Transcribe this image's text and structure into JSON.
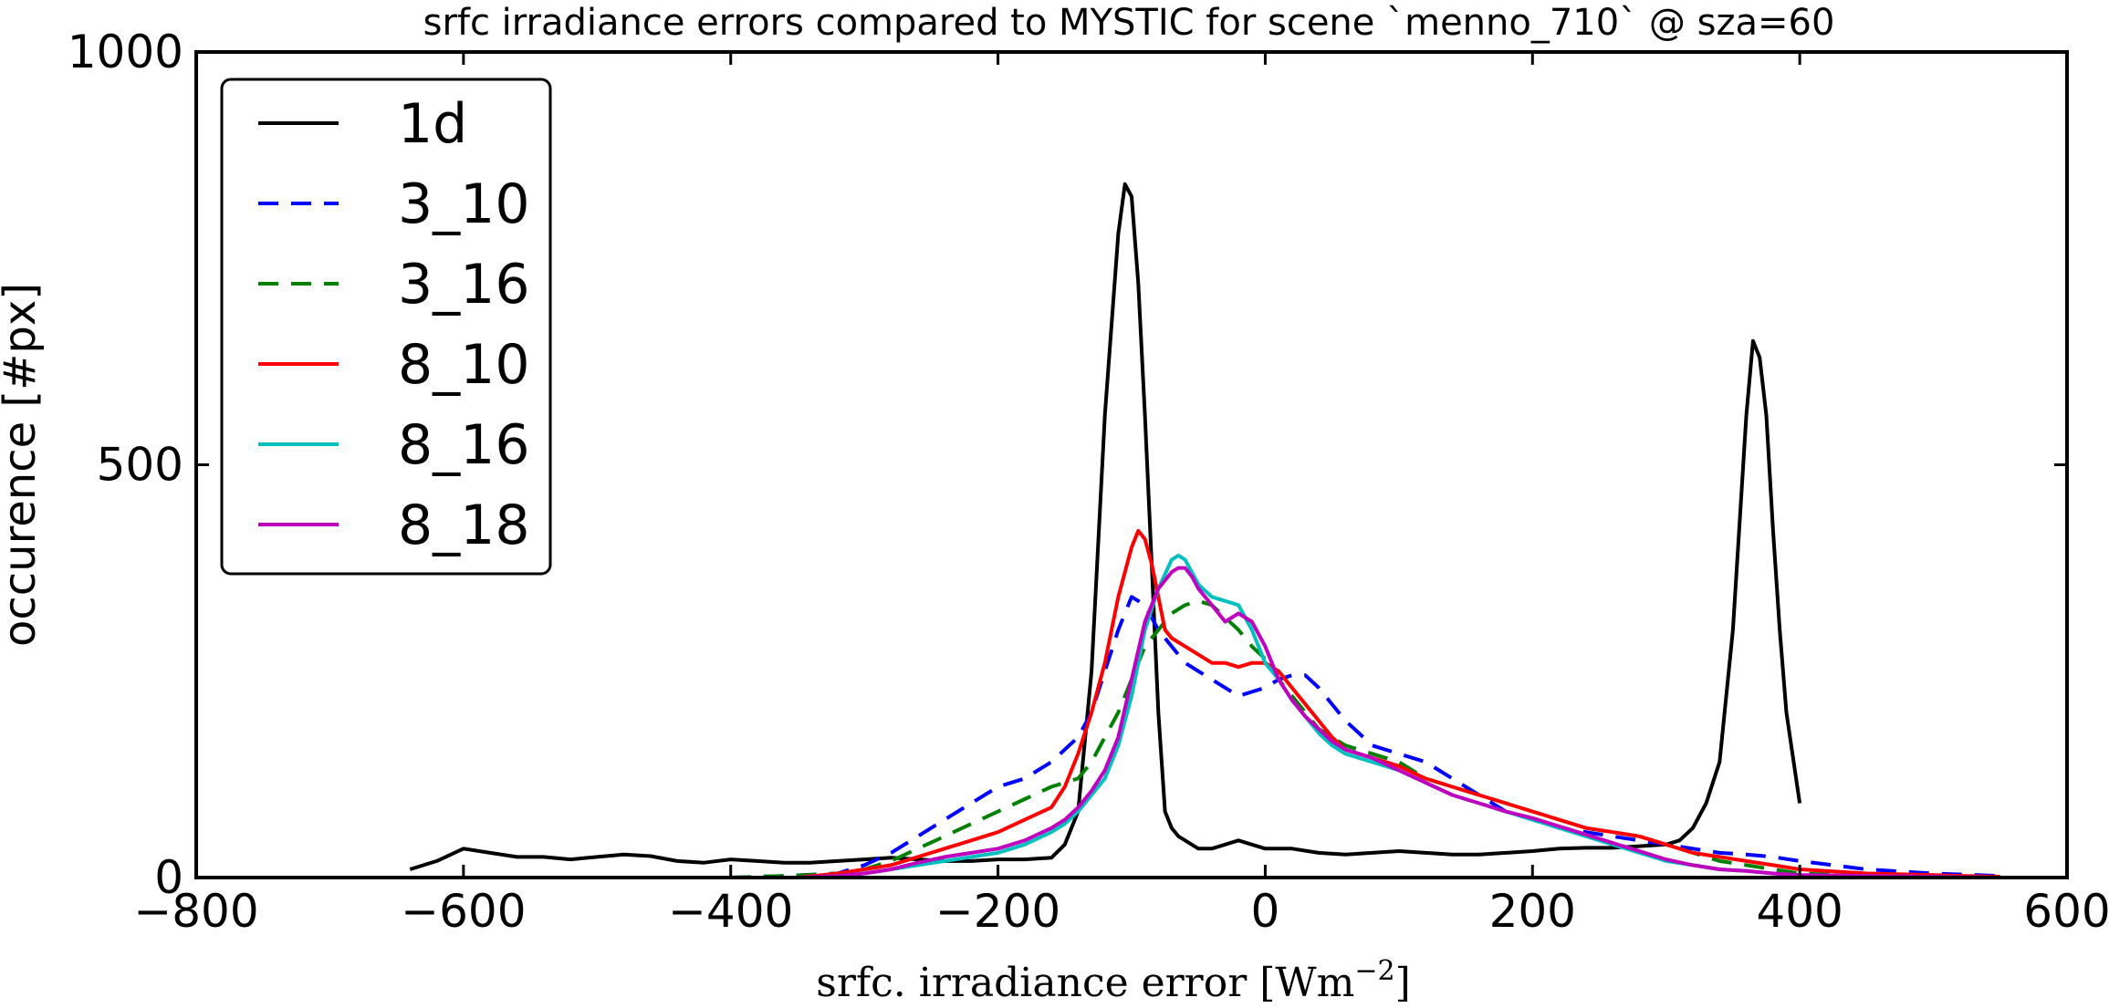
{
  "chart_data": {
    "type": "line",
    "title": "srfc irradiance errors compared to MYSTIC for scene `menno_710` @ sza=60",
    "xlabel": "srfc. irradiance error [Wm",
    "xlabel_sup": "−2",
    "xlabel_end": "]",
    "ylabel": "occurence [#px]",
    "xlim": [
      -800,
      600
    ],
    "ylim": [
      0,
      1000
    ],
    "xticks": [
      -800,
      -600,
      -400,
      -200,
      0,
      200,
      400,
      600
    ],
    "xtick_labels": [
      "−800",
      "−600",
      "−400",
      "−200",
      "0",
      "200",
      "400",
      "600"
    ],
    "yticks": [
      0,
      500,
      1000
    ],
    "ytick_labels": [
      "0",
      "500",
      "1000"
    ],
    "grid": false,
    "legend": "top-left",
    "series": [
      {
        "name": "1d",
        "color": "#000000",
        "style": "solid",
        "x": [
          -640,
          -620,
          -600,
          -580,
          -560,
          -540,
          -520,
          -500,
          -480,
          -460,
          -440,
          -420,
          -400,
          -380,
          -360,
          -340,
          -320,
          -300,
          -280,
          -260,
          -240,
          -220,
          -200,
          -180,
          -160,
          -150,
          -140,
          -130,
          -120,
          -110,
          -105,
          -100,
          -95,
          -90,
          -85,
          -80,
          -75,
          -70,
          -65,
          -60,
          -55,
          -50,
          -40,
          -30,
          -20,
          -10,
          0,
          10,
          20,
          40,
          60,
          80,
          100,
          120,
          140,
          160,
          180,
          200,
          220,
          240,
          260,
          280,
          300,
          310,
          320,
          330,
          340,
          350,
          360,
          365,
          370,
          375,
          380,
          385,
          390,
          400
        ],
        "y": [
          10,
          20,
          35,
          30,
          25,
          25,
          22,
          25,
          28,
          26,
          20,
          18,
          22,
          20,
          18,
          18,
          20,
          22,
          24,
          22,
          20,
          20,
          22,
          22,
          24,
          40,
          80,
          250,
          560,
          780,
          840,
          825,
          720,
          560,
          380,
          200,
          80,
          60,
          50,
          45,
          40,
          35,
          35,
          40,
          45,
          40,
          35,
          35,
          35,
          30,
          28,
          30,
          32,
          30,
          28,
          28,
          30,
          32,
          35,
          36,
          36,
          38,
          40,
          45,
          60,
          90,
          140,
          300,
          560,
          650,
          630,
          560,
          420,
          300,
          200,
          90
        ]
      },
      {
        "name": "3_10",
        "color": "#0000ff",
        "style": "dashed",
        "x": [
          -400,
          -360,
          -320,
          -300,
          -280,
          -260,
          -240,
          -220,
          -200,
          -180,
          -160,
          -140,
          -130,
          -120,
          -110,
          -100,
          -90,
          -80,
          -70,
          -60,
          -50,
          -40,
          -30,
          -20,
          -10,
          0,
          10,
          20,
          30,
          40,
          50,
          60,
          80,
          100,
          120,
          140,
          160,
          180,
          200,
          220,
          240,
          260,
          280,
          300,
          320,
          340,
          360,
          380,
          400,
          450,
          500,
          550
        ],
        "y": [
          0,
          2,
          5,
          15,
          30,
          50,
          70,
          90,
          110,
          120,
          140,
          170,
          200,
          250,
          300,
          340,
          330,
          300,
          280,
          260,
          250,
          240,
          230,
          220,
          225,
          230,
          240,
          245,
          245,
          230,
          210,
          190,
          160,
          150,
          140,
          120,
          100,
          80,
          70,
          60,
          55,
          50,
          45,
          40,
          35,
          30,
          28,
          25,
          20,
          10,
          5,
          2
        ]
      },
      {
        "name": "3_16",
        "color": "#008000",
        "style": "dashed",
        "x": [
          -400,
          -360,
          -320,
          -300,
          -280,
          -260,
          -240,
          -220,
          -200,
          -180,
          -160,
          -140,
          -130,
          -120,
          -110,
          -100,
          -90,
          -80,
          -70,
          -60,
          -50,
          -40,
          -30,
          -20,
          -10,
          0,
          10,
          20,
          30,
          40,
          50,
          60,
          80,
          100,
          120,
          140,
          160,
          180,
          200,
          220,
          240,
          260,
          280,
          300,
          320,
          340,
          360,
          380,
          400,
          450,
          500
        ],
        "y": [
          0,
          2,
          5,
          10,
          20,
          35,
          50,
          65,
          80,
          95,
          110,
          120,
          140,
          170,
          200,
          240,
          280,
          300,
          320,
          330,
          335,
          330,
          315,
          300,
          280,
          265,
          240,
          220,
          200,
          180,
          170,
          160,
          150,
          140,
          120,
          110,
          100,
          90,
          80,
          70,
          60,
          55,
          50,
          40,
          30,
          20,
          15,
          10,
          5,
          2,
          0
        ]
      },
      {
        "name": "8_10",
        "color": "#ff0000",
        "style": "solid",
        "x": [
          -350,
          -320,
          -300,
          -280,
          -260,
          -240,
          -220,
          -200,
          -180,
          -160,
          -150,
          -140,
          -130,
          -120,
          -110,
          -100,
          -95,
          -90,
          -85,
          -80,
          -75,
          -70,
          -60,
          -50,
          -40,
          -30,
          -20,
          -10,
          0,
          10,
          20,
          30,
          40,
          50,
          60,
          80,
          100,
          120,
          140,
          160,
          180,
          200,
          220,
          240,
          260,
          280,
          300,
          320,
          340,
          360,
          380,
          400,
          450,
          500,
          550
        ],
        "y": [
          0,
          5,
          10,
          15,
          25,
          35,
          45,
          55,
          70,
          85,
          110,
          150,
          200,
          260,
          340,
          400,
          420,
          410,
          380,
          340,
          300,
          290,
          280,
          270,
          260,
          260,
          255,
          260,
          260,
          250,
          230,
          210,
          190,
          170,
          155,
          145,
          135,
          120,
          110,
          100,
          90,
          80,
          70,
          60,
          55,
          50,
          40,
          30,
          25,
          20,
          15,
          10,
          5,
          3,
          1
        ]
      },
      {
        "name": "8_16",
        "color": "#00bfbf",
        "style": "solid",
        "x": [
          -350,
          -320,
          -300,
          -280,
          -260,
          -240,
          -220,
          -200,
          -180,
          -160,
          -150,
          -140,
          -130,
          -120,
          -110,
          -100,
          -90,
          -80,
          -70,
          -65,
          -60,
          -55,
          -50,
          -40,
          -30,
          -20,
          -10,
          0,
          10,
          20,
          30,
          40,
          50,
          60,
          80,
          100,
          120,
          140,
          160,
          180,
          200,
          220,
          240,
          260,
          280,
          300,
          320,
          340,
          360,
          380,
          400,
          450,
          500,
          550
        ],
        "y": [
          0,
          2,
          5,
          10,
          15,
          20,
          25,
          30,
          40,
          55,
          65,
          80,
          100,
          120,
          160,
          220,
          300,
          350,
          385,
          390,
          385,
          370,
          355,
          340,
          335,
          330,
          300,
          260,
          240,
          215,
          195,
          175,
          160,
          150,
          140,
          130,
          115,
          100,
          90,
          80,
          70,
          60,
          50,
          40,
          30,
          20,
          15,
          10,
          8,
          5,
          3,
          2,
          1,
          0
        ]
      },
      {
        "name": "8_18",
        "color": "#bf00bf",
        "style": "solid",
        "x": [
          -350,
          -320,
          -300,
          -280,
          -260,
          -240,
          -220,
          -200,
          -180,
          -160,
          -150,
          -140,
          -130,
          -120,
          -110,
          -100,
          -90,
          -80,
          -70,
          -65,
          -60,
          -55,
          -50,
          -40,
          -30,
          -20,
          -10,
          0,
          10,
          20,
          30,
          40,
          50,
          60,
          80,
          100,
          120,
          140,
          160,
          180,
          200,
          220,
          240,
          260,
          280,
          300,
          320,
          340,
          360,
          380,
          400,
          450,
          500,
          550
        ],
        "y": [
          0,
          2,
          5,
          10,
          18,
          25,
          30,
          35,
          45,
          60,
          70,
          85,
          105,
          130,
          170,
          240,
          310,
          350,
          370,
          375,
          375,
          365,
          350,
          330,
          310,
          320,
          310,
          280,
          240,
          215,
          195,
          180,
          165,
          155,
          145,
          130,
          115,
          100,
          90,
          80,
          72,
          62,
          52,
          42,
          32,
          22,
          15,
          10,
          8,
          5,
          3,
          2,
          1,
          0
        ]
      }
    ]
  }
}
